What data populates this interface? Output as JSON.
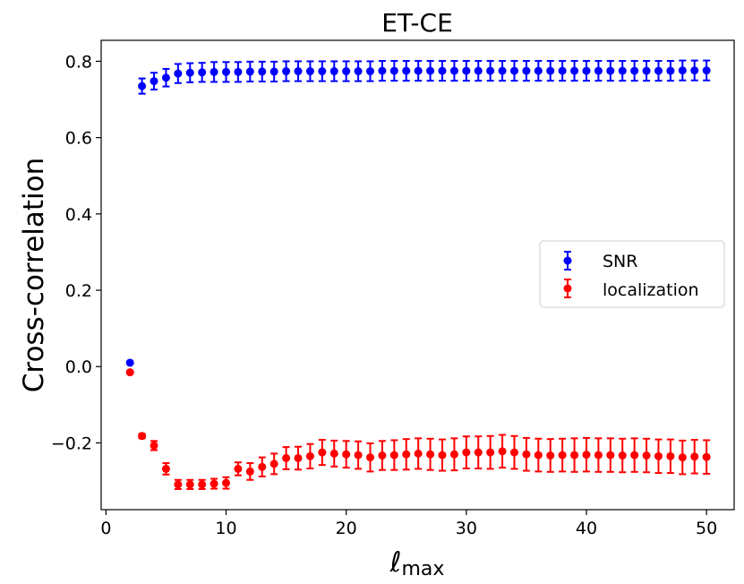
{
  "chart_data": {
    "type": "scatter",
    "title": "ET-CE",
    "xlabel_main": "ℓ",
    "xlabel_sub": "max",
    "ylabel": "Cross-correlation",
    "xlim": [
      -0.4,
      52.3
    ],
    "ylim": [
      -0.375,
      0.855
    ],
    "xticks": [
      0,
      10,
      20,
      30,
      40,
      50
    ],
    "xtick_labels": [
      "0",
      "10",
      "20",
      "30",
      "40",
      "50"
    ],
    "yticks": [
      -0.2,
      0.0,
      0.2,
      0.4,
      0.6,
      0.8
    ],
    "ytick_labels": [
      "−0.2",
      "0.0",
      "0.2",
      "0.4",
      "0.6",
      "0.8"
    ],
    "legend_position": "center-right",
    "series": [
      {
        "name": "SNR",
        "color": "#0000ff",
        "x": [
          2,
          3,
          4,
          5,
          6,
          7,
          8,
          9,
          10,
          11,
          12,
          13,
          14,
          15,
          16,
          17,
          18,
          19,
          20,
          21,
          22,
          23,
          24,
          25,
          26,
          27,
          28,
          29,
          30,
          31,
          32,
          33,
          34,
          35,
          36,
          37,
          38,
          39,
          40,
          41,
          42,
          43,
          44,
          45,
          46,
          47,
          48,
          49,
          50
        ],
        "y": [
          0.01,
          0.735,
          0.748,
          0.757,
          0.768,
          0.77,
          0.771,
          0.772,
          0.772,
          0.772,
          0.773,
          0.773,
          0.773,
          0.774,
          0.774,
          0.774,
          0.774,
          0.774,
          0.774,
          0.774,
          0.774,
          0.775,
          0.775,
          0.775,
          0.775,
          0.775,
          0.775,
          0.775,
          0.775,
          0.775,
          0.775,
          0.775,
          0.775,
          0.775,
          0.775,
          0.775,
          0.775,
          0.775,
          0.775,
          0.775,
          0.775,
          0.775,
          0.775,
          0.775,
          0.775,
          0.775,
          0.776,
          0.776,
          0.776
        ],
        "err": [
          0.003,
          0.02,
          0.022,
          0.023,
          0.025,
          0.025,
          0.025,
          0.026,
          0.026,
          0.026,
          0.026,
          0.026,
          0.026,
          0.026,
          0.026,
          0.026,
          0.026,
          0.026,
          0.026,
          0.026,
          0.026,
          0.026,
          0.026,
          0.026,
          0.026,
          0.026,
          0.026,
          0.026,
          0.026,
          0.026,
          0.026,
          0.026,
          0.026,
          0.026,
          0.026,
          0.026,
          0.026,
          0.026,
          0.026,
          0.026,
          0.026,
          0.026,
          0.026,
          0.026,
          0.026,
          0.026,
          0.026,
          0.026,
          0.026
        ]
      },
      {
        "name": "localization",
        "color": "#ff0000",
        "x": [
          2,
          3,
          4,
          5,
          6,
          7,
          8,
          9,
          10,
          11,
          12,
          13,
          14,
          15,
          16,
          17,
          18,
          19,
          20,
          21,
          22,
          23,
          24,
          25,
          26,
          27,
          28,
          29,
          30,
          31,
          32,
          33,
          34,
          35,
          36,
          37,
          38,
          39,
          40,
          41,
          42,
          43,
          44,
          45,
          46,
          47,
          48,
          49,
          50
        ],
        "y": [
          -0.015,
          -0.182,
          -0.207,
          -0.268,
          -0.309,
          -0.309,
          -0.309,
          -0.307,
          -0.305,
          -0.268,
          -0.275,
          -0.263,
          -0.255,
          -0.24,
          -0.24,
          -0.235,
          -0.225,
          -0.228,
          -0.23,
          -0.232,
          -0.238,
          -0.233,
          -0.232,
          -0.23,
          -0.228,
          -0.23,
          -0.232,
          -0.23,
          -0.225,
          -0.225,
          -0.225,
          -0.222,
          -0.225,
          -0.23,
          -0.232,
          -0.233,
          -0.232,
          -0.232,
          -0.231,
          -0.232,
          -0.232,
          -0.233,
          -0.232,
          -0.233,
          -0.235,
          -0.235,
          -0.238,
          -0.236,
          -0.237
        ],
        "err": [
          0.004,
          0.006,
          0.012,
          0.015,
          0.012,
          0.012,
          0.012,
          0.013,
          0.015,
          0.017,
          0.022,
          0.025,
          0.027,
          0.029,
          0.03,
          0.032,
          0.033,
          0.034,
          0.035,
          0.036,
          0.037,
          0.038,
          0.039,
          0.04,
          0.04,
          0.041,
          0.041,
          0.042,
          0.042,
          0.042,
          0.043,
          0.043,
          0.043,
          0.043,
          0.043,
          0.043,
          0.043,
          0.044,
          0.044,
          0.044,
          0.044,
          0.044,
          0.044,
          0.044,
          0.044,
          0.044,
          0.044,
          0.044,
          0.044
        ]
      }
    ]
  }
}
